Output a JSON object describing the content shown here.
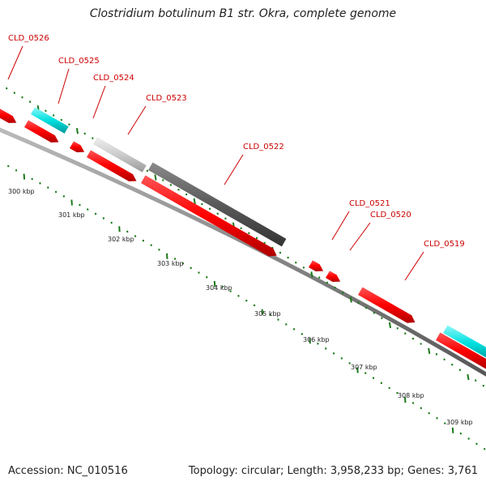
{
  "header": {
    "title": "Clostridium botulinum B1 str. Okra, complete genome"
  },
  "footer": {
    "accession": "Accession: NC_010516",
    "summary": "Topology: circular; Length: 3,958,233 bp; Genes: 3,761"
  },
  "genes": [
    {
      "label": "CLD_0526"
    },
    {
      "label": "CLD_0525"
    },
    {
      "label": "CLD_0524"
    },
    {
      "label": "CLD_0523"
    },
    {
      "label": "CLD_0522"
    },
    {
      "label": "CLD_0521"
    },
    {
      "label": "CLD_0520"
    },
    {
      "label": "CLD_0519"
    }
  ],
  "scale_labels": [
    "300 kbp",
    "301 kbp",
    "302 kbp",
    "303 kbp",
    "304 kbp",
    "305 kbp",
    "306 kbp",
    "307 kbp",
    "308 kbp",
    "309 kbp"
  ],
  "colors": {
    "gene_red": "#ff0000",
    "cds_cyan": "#00e5e5",
    "cds_dark": "#555555",
    "cds_light": "#c8c8c8",
    "tick_green": "#1a7a1a",
    "backbone": "#888888",
    "label_red": "#cc0000"
  }
}
